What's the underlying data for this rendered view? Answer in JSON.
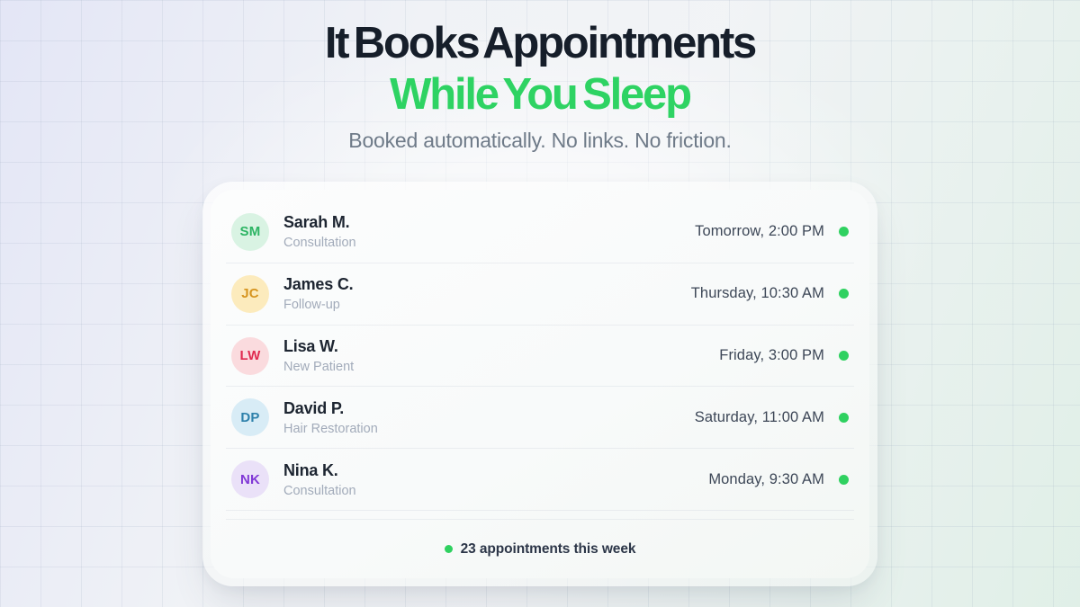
{
  "hero": {
    "title_line1": "It Books Appointments",
    "title_line2": "While You Sleep",
    "subtitle": "Booked automatically. No links. No friction.",
    "title_color": "#161e2a",
    "accent_color": "#2ed363"
  },
  "card": {
    "status_dot_color": "#2fd160",
    "rows": [
      {
        "initials": "SM",
        "name": "Sarah M.",
        "service": "Consultation",
        "time": "Tomorrow, 2:00 PM",
        "avatar_bg": "#d9f3e3",
        "avatar_fg": "#2cb463"
      },
      {
        "initials": "JC",
        "name": "James C.",
        "service": "Follow-up",
        "time": "Thursday, 10:30 AM",
        "avatar_bg": "#fcebbd",
        "avatar_fg": "#d6941f"
      },
      {
        "initials": "LW",
        "name": "Lisa W.",
        "service": "New Patient",
        "time": "Friday, 3:00 PM",
        "avatar_bg": "#fadbde",
        "avatar_fg": "#e02a50"
      },
      {
        "initials": "DP",
        "name": "David P.",
        "service": "Hair Restoration",
        "time": "Saturday, 11:00 AM",
        "avatar_bg": "#d8ecf6",
        "avatar_fg": "#2e81ab"
      },
      {
        "initials": "NK",
        "name": "Nina K.",
        "service": "Consultation",
        "time": "Monday, 9:30 AM",
        "avatar_bg": "#eae1f8",
        "avatar_fg": "#8038d6"
      }
    ],
    "summary_text": "23 appointments this week"
  }
}
